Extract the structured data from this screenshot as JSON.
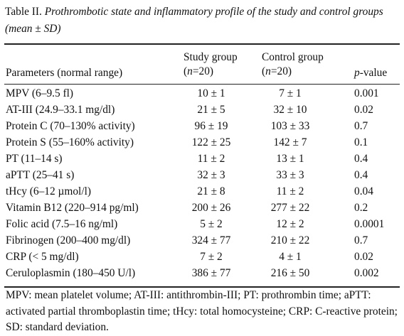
{
  "caption": {
    "label": "Table II.",
    "title": "Prothrombotic state and inflammatory profile of the study and control groups (mean ± SD)"
  },
  "headers": {
    "parameters": "Parameters (normal range)",
    "study_line1": "Study group",
    "study_line2_open": "(",
    "study_line2_n": "n",
    "study_line2_rest": "=20)",
    "control_line1": "Control group",
    "control_line2_open": "(",
    "control_line2_n": "n",
    "control_line2_rest": "=20)",
    "p_prefix": "p",
    "p_suffix": "-value"
  },
  "rows": [
    {
      "parameter": "MPV (6–9.5 fl)",
      "study": "10 ± 1",
      "control": "7 ± 1",
      "p": "0.001"
    },
    {
      "parameter": "AT-III (24.9–33.1 mg/dl)",
      "study": "21 ± 5",
      "control": "32 ± 10",
      "p": "0.02"
    },
    {
      "parameter": "Protein C (70–130% activity)",
      "study": "96 ± 19",
      "control": "103 ± 33",
      "p": "0.7"
    },
    {
      "parameter": "Protein S (55–160% activity)",
      "study": "122 ± 25",
      "control": "142 ± 7",
      "p": "0.1"
    },
    {
      "parameter": "PT (11–14 s)",
      "study": "11 ± 2",
      "control": "13 ± 1",
      "p": "0.4"
    },
    {
      "parameter": "aPTT (25–41 s)",
      "study": "32 ± 3",
      "control": "33 ± 3",
      "p": "0.4"
    },
    {
      "parameter": "tHcy (6–12 µmol/l)",
      "study": "21 ± 8",
      "control": "11 ± 2",
      "p": "0.04"
    },
    {
      "parameter": "Vitamin B12 (220–914 pg/ml)",
      "study": "200 ± 26",
      "control": "277 ± 22",
      "p": "0.2"
    },
    {
      "parameter": "Folic acid (7.5–16 ng/ml)",
      "study": "5 ± 2",
      "control": "12 ± 2",
      "p": "0.0001"
    },
    {
      "parameter": "Fibrinogen (200–400 mg/dl)",
      "study": "324 ± 77",
      "control": "210 ± 22",
      "p": "0.7"
    },
    {
      "parameter": "CRP (< 5 mg/dl)",
      "study": "7 ± 2",
      "control": "4 ± 1",
      "p": "0.02"
    },
    {
      "parameter": "Ceruloplasmin (180–450 U/l)",
      "study": "386 ± 77",
      "control": "216 ± 50",
      "p": "0.002"
    }
  ],
  "footnote": "MPV: mean platelet volume; AT-III: antithrombin-III; PT: prothrombin time; aPTT: activated partial thromboplastin time; tHcy: total homocysteine; CRP: C-reactive protein; SD: standard deviation."
}
